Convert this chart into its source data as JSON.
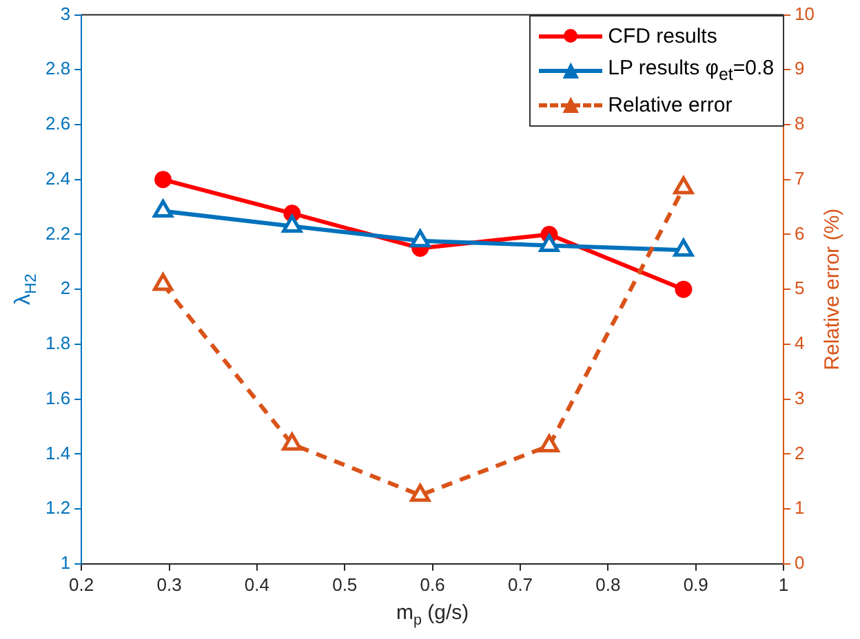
{
  "chart_data": {
    "type": "line",
    "xlabel": "m$_{p}$ (g/s)",
    "ylabel": "λ$_{H2}$",
    "y2label": "Relative error (%)",
    "x": [
      0.293,
      0.44,
      0.586,
      0.733,
      0.886
    ],
    "xlim": [
      0.2,
      1
    ],
    "xticks": [
      0.2,
      0.3,
      0.4,
      0.5,
      0.6,
      0.7,
      0.8,
      0.9,
      1
    ],
    "ylim": [
      1,
      3
    ],
    "yticks": [
      1,
      1.2,
      1.4,
      1.6,
      1.8,
      2,
      2.2,
      2.4,
      2.6,
      2.8,
      3
    ],
    "y2lim": [
      0,
      10
    ],
    "y2ticks": [
      0,
      1,
      2,
      3,
      4,
      5,
      6,
      7,
      8,
      9,
      10
    ],
    "legend": "top right",
    "grid": false,
    "series": [
      {
        "name": "CFD results",
        "color": "#ff0000",
        "marker": "circle",
        "line_style": "solid",
        "values": [
          2.4,
          2.277,
          2.15,
          2.2,
          2.0
        ]
      },
      {
        "name": "LP results φ$_{et}$=0.8",
        "color": "#0072bd",
        "marker": "triangle",
        "line_style": "solid",
        "values": [
          2.285,
          2.23,
          2.177,
          2.16,
          2.143
        ]
      },
      {
        "name": "Relative error",
        "color": "#d95319",
        "marker": "triangle",
        "line_style": "dashed",
        "axis": "y2",
        "values": [
          5.09,
          2.18,
          1.25,
          2.15,
          6.85
        ]
      }
    ]
  }
}
